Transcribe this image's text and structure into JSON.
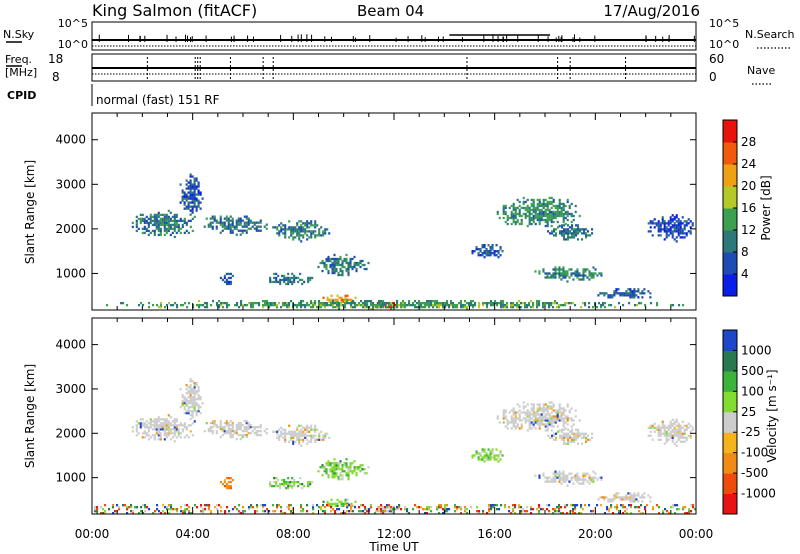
{
  "header": {
    "station": "King Salmon (fitACF)",
    "beam": "Beam 04",
    "date": "17/Aug/2016"
  },
  "summary_panels": {
    "nsky": {
      "label": "N.Sky",
      "left_ticks": [
        "10^5",
        "10^0"
      ],
      "right_label": "N.Search",
      "right_ticks": [
        "10^5",
        "10^0"
      ]
    },
    "freq": {
      "label": "Freq.",
      "unit": "[MHz]",
      "left_ticks": [
        "18",
        "8"
      ],
      "right_label": "Nave",
      "right_ticks": [
        "60",
        "0"
      ]
    },
    "cpid": {
      "label": "CPID",
      "program": "normal (fast) 151 RF"
    }
  },
  "chart_data": [
    {
      "type": "heatmap",
      "parameter": "power",
      "ylabel": "Slant Range [km]",
      "ylim": [
        180,
        4600
      ],
      "yticks": [
        1000,
        2000,
        3000,
        4000
      ],
      "xlim_hours": [
        0,
        24
      ],
      "xticks": [
        "00:00",
        "04:00",
        "08:00",
        "12:00",
        "16:00",
        "20:00",
        "00:00"
      ],
      "colorbar": {
        "label": "Power [dB]",
        "range": [
          0,
          32
        ],
        "tick_values": [
          4,
          8,
          12,
          16,
          20,
          24,
          28
        ],
        "tick_labels": [
          "4",
          "8",
          "12",
          "16",
          "20",
          "24",
          "28"
        ],
        "colors": [
          "#0a1ee6",
          "#1e4bb4",
          "#2d7878",
          "#3ca050",
          "#b4c828",
          "#f0a014",
          "#f05a0a",
          "#e6140a"
        ]
      },
      "echo_regions": [
        {
          "t": [
            1.5,
            4.2
          ],
          "r": [
            1800,
            2400
          ],
          "level": 0.3
        },
        {
          "t": [
            4.2,
            7.0
          ],
          "r": [
            1850,
            2300
          ],
          "level": 0.3
        },
        {
          "t": [
            7.0,
            9.5
          ],
          "r": [
            1700,
            2200
          ],
          "level": 0.3
        },
        {
          "t": [
            3.4,
            4.4
          ],
          "r": [
            2300,
            3250
          ],
          "level": 0.2
        },
        {
          "t": [
            5.0,
            5.6
          ],
          "r": [
            700,
            1050
          ],
          "level": 0.22
        },
        {
          "t": [
            6.8,
            8.8
          ],
          "r": [
            700,
            1000
          ],
          "level": 0.28
        },
        {
          "t": [
            8.8,
            11.0
          ],
          "r": [
            900,
            1400
          ],
          "level": 0.32
        },
        {
          "t": [
            9.0,
            10.5
          ],
          "r": [
            300,
            500
          ],
          "level": 0.7
        },
        {
          "t": [
            11.0,
            12.2
          ],
          "r": [
            180,
            350
          ],
          "level": 0.95
        },
        {
          "t": [
            15.0,
            16.5
          ],
          "r": [
            1300,
            1650
          ],
          "level": 0.22
        },
        {
          "t": [
            16.0,
            19.5
          ],
          "r": [
            2000,
            2700
          ],
          "level": 0.36
        },
        {
          "t": [
            18.0,
            20.0
          ],
          "r": [
            1700,
            2100
          ],
          "level": 0.28
        },
        {
          "t": [
            17.5,
            20.5
          ],
          "r": [
            800,
            1150
          ],
          "level": 0.35
        },
        {
          "t": [
            20.0,
            22.5
          ],
          "r": [
            400,
            650
          ],
          "level": 0.22
        },
        {
          "t": [
            22.0,
            24.0
          ],
          "r": [
            1700,
            2300
          ],
          "level": 0.18
        },
        {
          "t": [
            0.0,
            24.0
          ],
          "r": [
            180,
            380
          ],
          "level": 0.4
        }
      ]
    },
    {
      "type": "heatmap",
      "parameter": "velocity",
      "ylabel": "Slant Range [km]",
      "ylim": [
        180,
        4600
      ],
      "yticks": [
        1000,
        2000,
        3000,
        4000
      ],
      "xlim_hours": [
        0,
        24
      ],
      "xticks": [
        "00:00",
        "04:00",
        "08:00",
        "12:00",
        "16:00",
        "20:00",
        "00:00"
      ],
      "xlabel": "Time UT",
      "colorbar": {
        "label": "Velocity [m s⁻¹]",
        "tick_labels": [
          "1000",
          "500",
          "100",
          "25",
          "-25",
          "-100",
          "-500",
          "-1000"
        ],
        "colors": [
          "#e61414",
          "#f04b0a",
          "#f08c14",
          "#f5b41e",
          "#cdcdcd",
          "#82dc32",
          "#3cb43c",
          "#287850",
          "#1e46c8"
        ]
      },
      "echo_regions": [
        {
          "t": [
            1.5,
            4.2
          ],
          "r": [
            1800,
            2400
          ],
          "class": "ground"
        },
        {
          "t": [
            4.2,
            7.0
          ],
          "r": [
            1850,
            2300
          ],
          "class": "ground"
        },
        {
          "t": [
            7.0,
            9.5
          ],
          "r": [
            1700,
            2200
          ],
          "class": "ground"
        },
        {
          "t": [
            3.4,
            4.4
          ],
          "r": [
            2300,
            3250
          ],
          "class": "ground"
        },
        {
          "t": [
            5.0,
            5.6
          ],
          "r": [
            700,
            1050
          ],
          "class": "neg_high"
        },
        {
          "t": [
            6.8,
            8.8
          ],
          "r": [
            700,
            1000
          ],
          "class": "pos_low"
        },
        {
          "t": [
            8.8,
            11.0
          ],
          "r": [
            900,
            1400
          ],
          "class": "pos_low"
        },
        {
          "t": [
            9.0,
            10.5
          ],
          "r": [
            300,
            500
          ],
          "class": "pos_low"
        },
        {
          "t": [
            11.0,
            12.2
          ],
          "r": [
            180,
            350
          ],
          "class": "ground"
        },
        {
          "t": [
            15.0,
            16.5
          ],
          "r": [
            1300,
            1650
          ],
          "class": "pos_low"
        },
        {
          "t": [
            16.0,
            19.5
          ],
          "r": [
            2000,
            2700
          ],
          "class": "ground"
        },
        {
          "t": [
            18.0,
            20.0
          ],
          "r": [
            1700,
            2100
          ],
          "class": "ground"
        },
        {
          "t": [
            17.5,
            20.5
          ],
          "r": [
            800,
            1150
          ],
          "class": "ground"
        },
        {
          "t": [
            20.0,
            22.5
          ],
          "r": [
            400,
            650
          ],
          "class": "ground"
        },
        {
          "t": [
            22.0,
            24.0
          ],
          "r": [
            1700,
            2300
          ],
          "class": "ground"
        },
        {
          "t": [
            0.0,
            24.0
          ],
          "r": [
            180,
            380
          ],
          "class": "mixed"
        }
      ]
    }
  ]
}
